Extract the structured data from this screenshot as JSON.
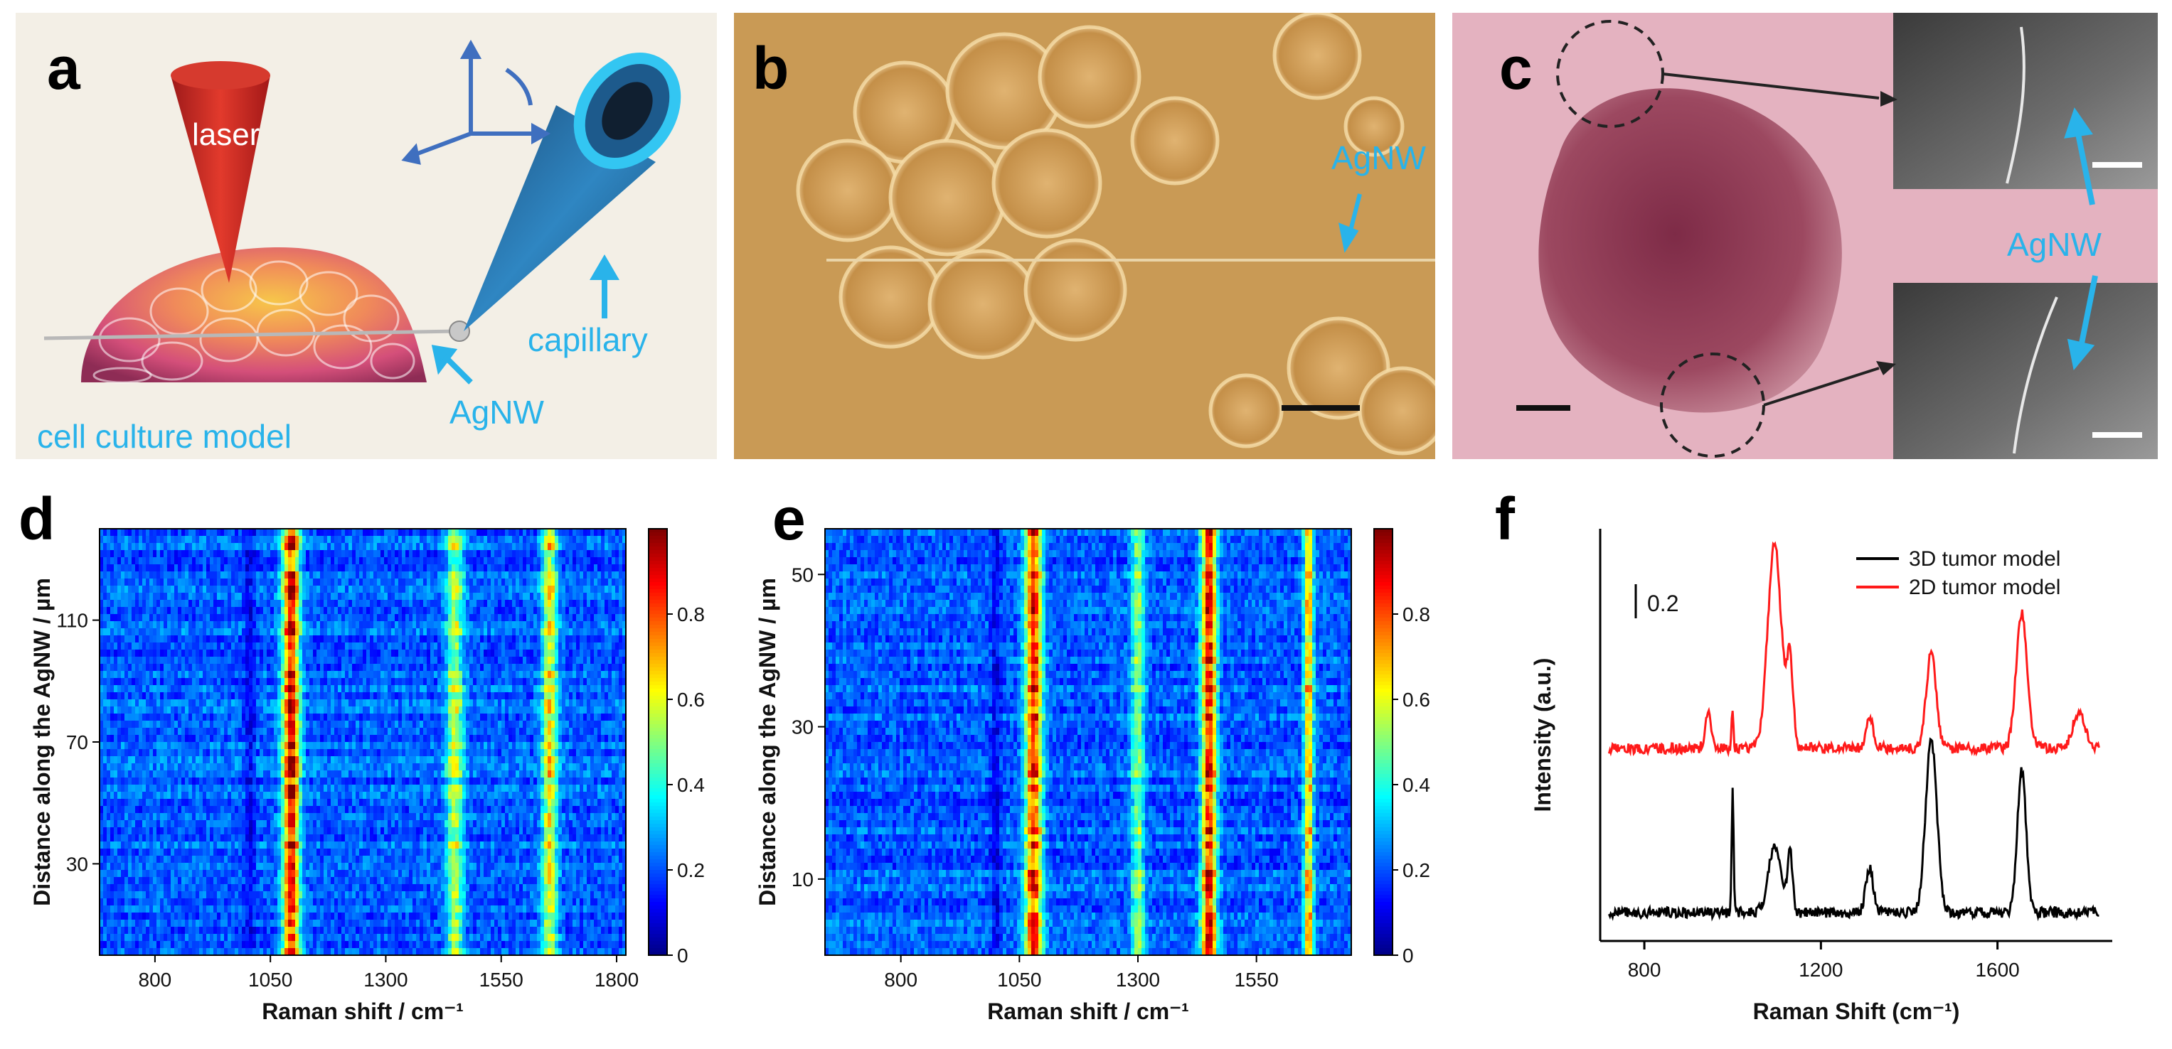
{
  "panels": {
    "a": {
      "label": "a",
      "texts": {
        "laser": "laser",
        "capillary": "capillary",
        "agnw": "AgNW",
        "model": "cell culture model"
      }
    },
    "b": {
      "label": "b",
      "agnw": "AgNW"
    },
    "c": {
      "label": "c",
      "agnw": "AgNW"
    },
    "d": {
      "label": "d"
    },
    "e": {
      "label": "e"
    },
    "f": {
      "label": "f"
    }
  },
  "colors": {
    "cyan": "#29b3ea",
    "red_series": "#ff1a1a",
    "black_series": "#000000"
  },
  "chart_data": [
    {
      "panel": "d",
      "type": "heatmap",
      "xlabel": "Raman shift / cm⁻¹",
      "ylabel": "Distance along the AgNW / µm",
      "xticks": [
        "800",
        "1050",
        "1300",
        "1550",
        "1800"
      ],
      "yticks": [
        "30",
        "70",
        "110"
      ],
      "xlim": [
        680,
        1820
      ],
      "ylim": [
        0,
        140
      ],
      "colorbar_ticks": [
        "0",
        "0.2",
        "0.4",
        "0.6",
        "0.8"
      ],
      "colorbar_range": [
        0,
        1
      ],
      "bands": [
        {
          "shift": 1005,
          "level": 0.1,
          "width": 12
        },
        {
          "shift": 1095,
          "level": 0.9,
          "width": 18
        },
        {
          "shift": 1450,
          "level": 0.55,
          "width": 18
        },
        {
          "shift": 1655,
          "level": 0.62,
          "width": 16
        }
      ]
    },
    {
      "panel": "e",
      "type": "heatmap",
      "xlabel": "Raman shift / cm⁻¹",
      "ylabel": "Distance along the AgNW / µm",
      "xticks": [
        "800",
        "1050",
        "1300",
        "1550"
      ],
      "yticks": [
        "10",
        "30",
        "50"
      ],
      "xlim": [
        640,
        1750
      ],
      "ylim": [
        0,
        56
      ],
      "colorbar_ticks": [
        "0",
        "0.2",
        "0.4",
        "0.6",
        "0.8"
      ],
      "colorbar_range": [
        0,
        1
      ],
      "bands": [
        {
          "shift": 1000,
          "level": 0.1,
          "width": 10
        },
        {
          "shift": 1080,
          "level": 0.85,
          "width": 18
        },
        {
          "shift": 1300,
          "level": 0.5,
          "width": 14
        },
        {
          "shift": 1450,
          "level": 0.88,
          "width": 16
        },
        {
          "shift": 1660,
          "level": 0.7,
          "width": 10
        }
      ]
    },
    {
      "panel": "f",
      "type": "line",
      "xlabel": "Raman Shift (cm⁻¹)",
      "ylabel": "Intensity (a.u.)",
      "xticks": [
        "800",
        "1200",
        "1600"
      ],
      "xlim": [
        700,
        1860
      ],
      "scale_bar_label": "0.2",
      "series": [
        {
          "name": "3D tumor model",
          "color": "#000000",
          "offset": 0.0,
          "peaks": [
            [
              1000,
              0.42,
              3
            ],
            [
              1095,
              0.22,
              20
            ],
            [
              1130,
              0.2,
              8
            ],
            [
              1310,
              0.15,
              12
            ],
            [
              1450,
              0.58,
              18
            ],
            [
              1655,
              0.48,
              14
            ]
          ]
        },
        {
          "name": "2D tumor model",
          "color": "#ff1a1a",
          "offset": 0.55,
          "peaks": [
            [
              945,
              0.12,
              10
            ],
            [
              1000,
              0.14,
              3
            ],
            [
              1095,
              0.68,
              22
            ],
            [
              1130,
              0.28,
              10
            ],
            [
              1310,
              0.1,
              12
            ],
            [
              1450,
              0.32,
              16
            ],
            [
              1655,
              0.45,
              18
            ],
            [
              1785,
              0.12,
              20
            ]
          ]
        }
      ]
    }
  ]
}
